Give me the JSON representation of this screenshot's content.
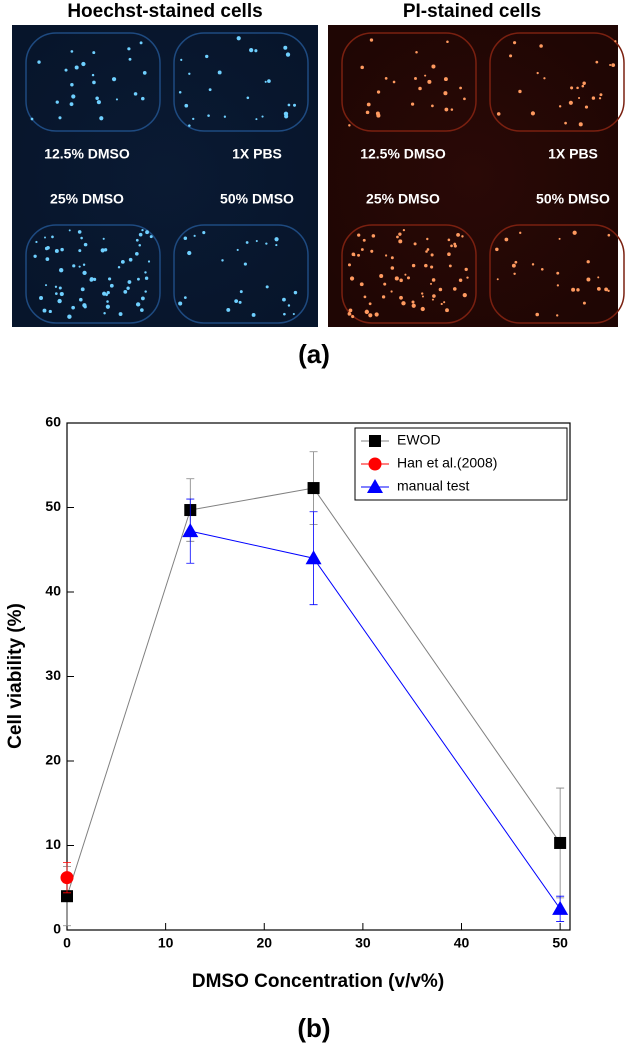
{
  "panel_a": {
    "left_title": "Hoechst-stained cells",
    "right_title": "PI-stained cells",
    "well_labels": [
      "12.5% DMSO",
      "1X PBS",
      "25% DMSO",
      "50% DMSO"
    ],
    "label": "(a)"
  },
  "chart_data": {
    "type": "line",
    "panel_label": "(b)",
    "x_label": "DMSO Concentration (v/v%)",
    "y_label": "Cell viability (%)",
    "xlim": [
      0,
      51
    ],
    "ylim": [
      0,
      60
    ],
    "xticks": [
      0,
      10,
      20,
      30,
      40,
      50
    ],
    "yticks": [
      0,
      10,
      20,
      30,
      40,
      50,
      60
    ],
    "legend": "upper right",
    "series": [
      {
        "name": "EWOD",
        "color": "#000000",
        "line_color": "#808080",
        "marker": "square",
        "x": [
          0,
          12.5,
          25,
          50
        ],
        "values": [
          4,
          49.7,
          52.3,
          10.3
        ],
        "errors": [
          3.5,
          3.7,
          4.3,
          6.5
        ]
      },
      {
        "name": "Han et al.(2008)",
        "color": "#ff0000",
        "line_color": "#ff0000",
        "marker": "circle",
        "x": [
          0
        ],
        "values": [
          6.2
        ],
        "errors": [
          1.8
        ]
      },
      {
        "name": "manual test",
        "color": "#0000ff",
        "line_color": "#0000ff",
        "marker": "triangle",
        "x": [
          12.5,
          25,
          50
        ],
        "values": [
          47.2,
          44,
          2.5
        ],
        "errors": [
          3.8,
          5.5,
          1.5
        ]
      }
    ]
  }
}
